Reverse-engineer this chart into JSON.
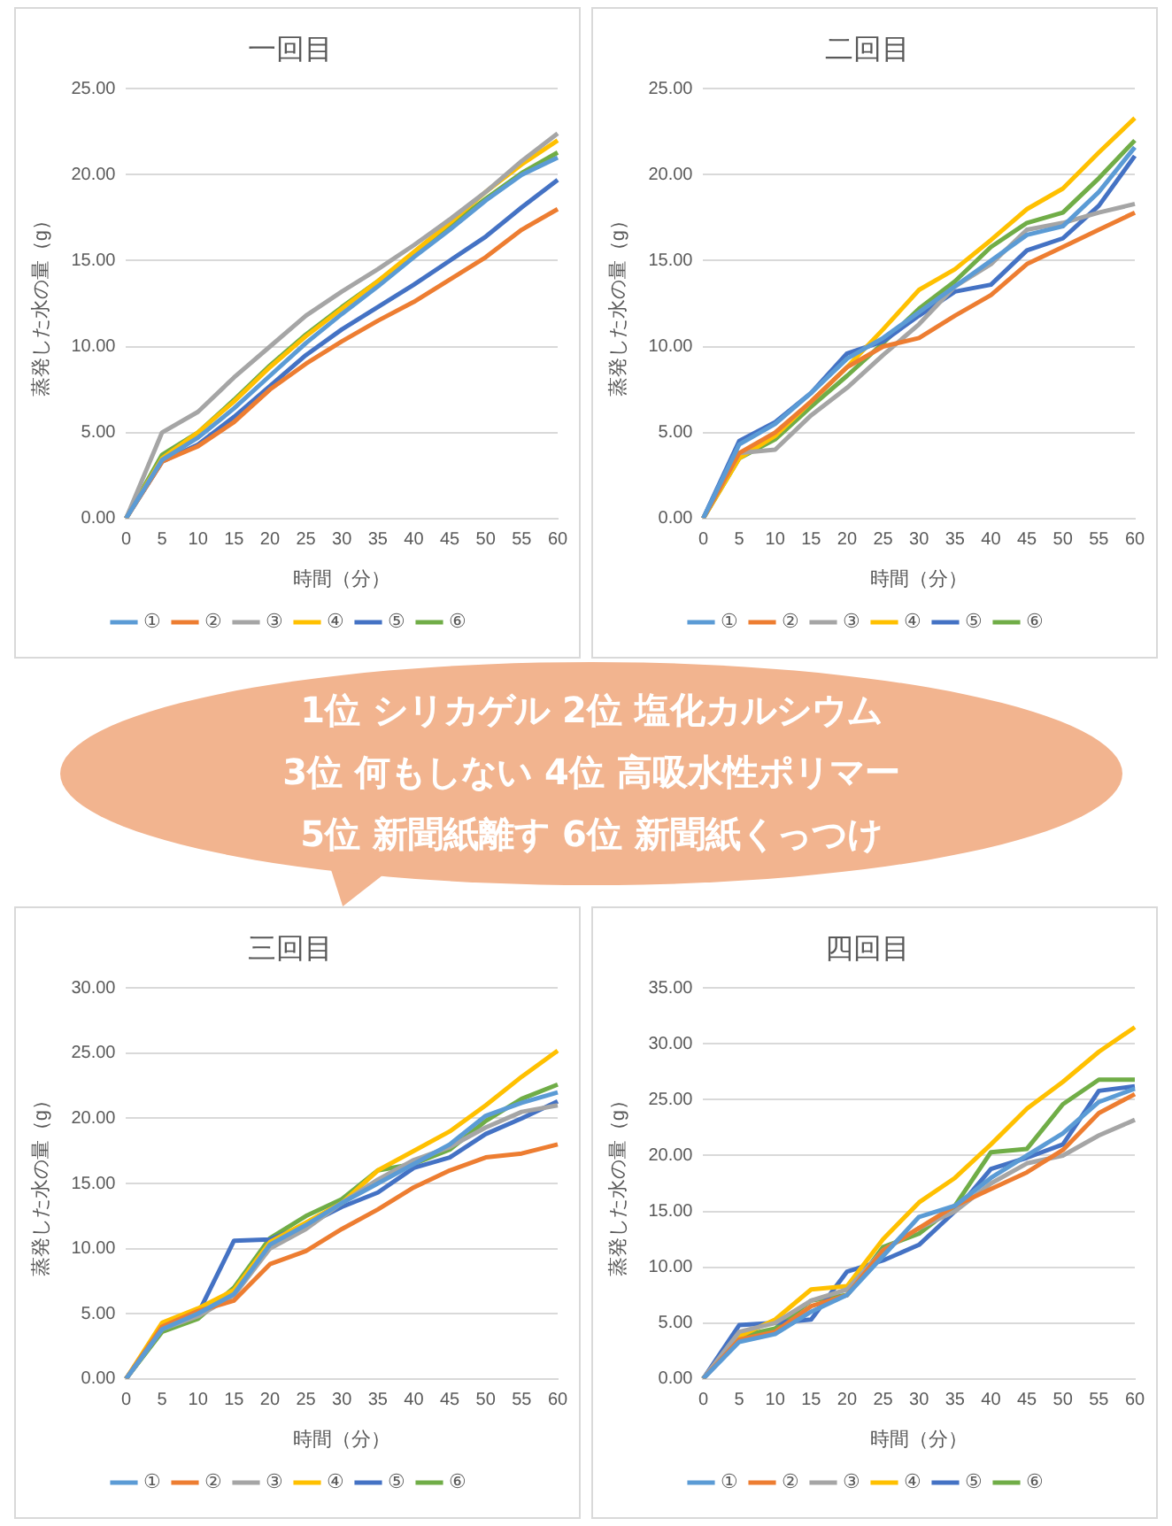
{
  "chart_data": [
    {
      "type": "line",
      "title": "一回目",
      "xlabel": "時間（分）",
      "ylabel": "蒸発した水の量（g）",
      "categories": [
        "0",
        "5",
        "10",
        "15",
        "20",
        "25",
        "30",
        "35",
        "40",
        "45",
        "50",
        "55",
        "60"
      ],
      "series": [
        {
          "name": "①",
          "color": "#5b9bd5",
          "values": [
            0,
            3.4,
            4.7,
            6.4,
            8.3,
            10.2,
            11.9,
            13.5,
            15.2,
            16.8,
            18.5,
            20.0,
            21.0
          ]
        },
        {
          "name": "②",
          "color": "#ed7d31",
          "values": [
            0,
            3.3,
            4.2,
            5.6,
            7.5,
            9.0,
            10.3,
            11.5,
            12.6,
            13.9,
            15.2,
            16.8,
            18.0
          ]
        },
        {
          "name": "③",
          "color": "#a5a5a5",
          "values": [
            0,
            5.0,
            6.2,
            8.2,
            10.0,
            11.8,
            13.2,
            14.5,
            15.9,
            17.4,
            19.0,
            20.8,
            22.4
          ]
        },
        {
          "name": "④",
          "color": "#ffc000",
          "values": [
            0,
            3.5,
            5.0,
            6.8,
            8.8,
            10.6,
            12.2,
            13.8,
            15.5,
            17.2,
            19.0,
            20.6,
            22.0
          ]
        },
        {
          "name": "⑤",
          "color": "#4472c4",
          "values": [
            0,
            3.3,
            4.3,
            5.9,
            7.7,
            9.5,
            11.0,
            12.3,
            13.6,
            15.0,
            16.4,
            18.1,
            19.7
          ]
        },
        {
          "name": "⑥",
          "color": "#70ad47",
          "values": [
            0,
            3.7,
            5.0,
            6.9,
            8.9,
            10.7,
            12.3,
            13.8,
            15.4,
            17.0,
            18.6,
            20.1,
            21.3
          ]
        }
      ],
      "ylim": [
        0,
        25
      ],
      "yticks": [
        {
          "value": 0,
          "label": "0.00"
        },
        {
          "value": 5,
          "label": "5.00"
        },
        {
          "value": 10,
          "label": "10.00"
        },
        {
          "value": 15,
          "label": "15.00"
        },
        {
          "value": 20,
          "label": "20.00"
        },
        {
          "value": 25,
          "label": "25.00"
        }
      ],
      "grid": "y",
      "legend": "bottom"
    },
    {
      "type": "line",
      "title": "二回目",
      "xlabel": "時間（分）",
      "ylabel": "蒸発した水の量（g）",
      "categories": [
        "0",
        "5",
        "10",
        "15",
        "20",
        "25",
        "30",
        "35",
        "40",
        "45",
        "50",
        "55",
        "60"
      ],
      "series": [
        {
          "name": "①",
          "color": "#5b9bd5",
          "values": [
            0,
            4.3,
            5.5,
            7.3,
            9.3,
            10.5,
            12.0,
            13.5,
            15.0,
            16.5,
            17.0,
            19.0,
            21.6
          ]
        },
        {
          "name": "②",
          "color": "#ed7d31",
          "values": [
            0,
            3.8,
            5.0,
            6.8,
            8.8,
            10.0,
            10.5,
            11.8,
            13.0,
            14.8,
            15.8,
            16.8,
            17.8
          ]
        },
        {
          "name": "③",
          "color": "#a5a5a5",
          "values": [
            0,
            3.8,
            4.0,
            6.0,
            7.6,
            9.5,
            11.3,
            13.5,
            14.8,
            16.8,
            17.2,
            17.8,
            18.3
          ]
        },
        {
          "name": "④",
          "color": "#ffc000",
          "values": [
            0,
            3.5,
            4.8,
            6.8,
            8.8,
            11.0,
            13.3,
            14.5,
            16.2,
            18.0,
            19.2,
            21.3,
            23.3
          ]
        },
        {
          "name": "⑤",
          "color": "#4472c4",
          "values": [
            0,
            4.5,
            5.6,
            7.3,
            9.6,
            10.3,
            11.8,
            13.2,
            13.6,
            15.6,
            16.3,
            18.2,
            21.1
          ]
        },
        {
          "name": "⑥",
          "color": "#70ad47",
          "values": [
            0,
            3.5,
            4.6,
            6.5,
            8.3,
            10.2,
            12.2,
            13.8,
            15.8,
            17.2,
            17.8,
            19.8,
            22.0
          ]
        }
      ],
      "ylim": [
        0,
        25
      ],
      "yticks": [
        {
          "value": 0,
          "label": "0.00"
        },
        {
          "value": 5,
          "label": "5.00"
        },
        {
          "value": 10,
          "label": "10.00"
        },
        {
          "value": 15,
          "label": "15.00"
        },
        {
          "value": 20,
          "label": "20.00"
        },
        {
          "value": 25,
          "label": "25.00"
        }
      ],
      "grid": "y",
      "legend": "bottom"
    },
    {
      "type": "line",
      "title": "三回目",
      "xlabel": "時間（分）",
      "ylabel": "蒸発した水の量（g）",
      "categories": [
        "0",
        "5",
        "10",
        "15",
        "20",
        "25",
        "30",
        "35",
        "40",
        "45",
        "50",
        "55",
        "60"
      ],
      "series": [
        {
          "name": "①",
          "color": "#5b9bd5",
          "values": [
            0,
            3.8,
            5.0,
            6.5,
            10.3,
            11.8,
            13.5,
            15.0,
            16.5,
            18.0,
            20.2,
            21.2,
            22.0
          ]
        },
        {
          "name": "②",
          "color": "#ed7d31",
          "values": [
            0,
            4.0,
            5.2,
            6.0,
            8.8,
            9.8,
            11.5,
            13.0,
            14.7,
            16.0,
            17.0,
            17.3,
            18.0
          ]
        },
        {
          "name": "③",
          "color": "#a5a5a5",
          "values": [
            0,
            3.8,
            4.8,
            6.4,
            10.0,
            11.5,
            13.5,
            15.3,
            16.8,
            17.8,
            19.3,
            20.5,
            21.0
          ]
        },
        {
          "name": "④",
          "color": "#ffc000",
          "values": [
            0,
            4.3,
            5.4,
            6.8,
            10.5,
            12.0,
            13.5,
            16.0,
            17.5,
            19.0,
            21.0,
            23.2,
            25.2
          ]
        },
        {
          "name": "⑤",
          "color": "#4472c4",
          "values": [
            0,
            3.8,
            5.0,
            10.6,
            10.7,
            11.8,
            13.2,
            14.3,
            16.2,
            17.0,
            18.8,
            20.0,
            21.3
          ]
        },
        {
          "name": "⑥",
          "color": "#70ad47",
          "values": [
            0,
            3.6,
            4.6,
            7.0,
            10.8,
            12.5,
            13.8,
            16.0,
            16.5,
            17.6,
            19.8,
            21.5,
            22.6
          ]
        }
      ],
      "ylim": [
        0,
        30
      ],
      "yticks": [
        {
          "value": 0,
          "label": "0.00"
        },
        {
          "value": 5,
          "label": "5.00"
        },
        {
          "value": 10,
          "label": "10.00"
        },
        {
          "value": 15,
          "label": "15.00"
        },
        {
          "value": 20,
          "label": "20.00"
        },
        {
          "value": 25,
          "label": "25.00"
        },
        {
          "value": 30,
          "label": "30.00"
        }
      ],
      "grid": "y",
      "legend": "bottom"
    },
    {
      "type": "line",
      "title": "四回目",
      "xlabel": "時間（分）",
      "ylabel": "蒸発した水の量（g）",
      "categories": [
        "0",
        "5",
        "10",
        "15",
        "20",
        "25",
        "30",
        "35",
        "40",
        "45",
        "50",
        "55",
        "60"
      ],
      "series": [
        {
          "name": "①",
          "color": "#5b9bd5",
          "values": [
            0,
            3.3,
            4.0,
            6.0,
            7.5,
            11.0,
            14.5,
            15.5,
            18.0,
            20.0,
            22.0,
            24.8,
            26.0
          ]
        },
        {
          "name": "②",
          "color": "#ed7d31",
          "values": [
            0,
            3.5,
            4.2,
            6.5,
            7.5,
            11.5,
            13.5,
            15.5,
            17.0,
            18.5,
            20.5,
            23.8,
            25.5
          ]
        },
        {
          "name": "③",
          "color": "#a5a5a5",
          "values": [
            0,
            4.2,
            5.0,
            7.0,
            8.0,
            11.5,
            13.5,
            15.0,
            17.5,
            19.3,
            20.0,
            21.8,
            23.2
          ]
        },
        {
          "name": "④",
          "color": "#ffc000",
          "values": [
            0,
            3.8,
            5.3,
            8.0,
            8.3,
            12.5,
            15.8,
            18.0,
            21.0,
            24.2,
            26.6,
            29.3,
            31.5
          ]
        },
        {
          "name": "⑤",
          "color": "#4472c4",
          "values": [
            0,
            4.8,
            5.0,
            5.3,
            9.6,
            10.6,
            12.0,
            15.0,
            18.8,
            19.8,
            21.0,
            25.8,
            26.2
          ]
        },
        {
          "name": "⑥",
          "color": "#70ad47",
          "values": [
            0,
            3.8,
            4.5,
            7.0,
            7.5,
            11.8,
            13.0,
            15.5,
            20.3,
            20.6,
            24.6,
            26.8,
            26.8
          ]
        }
      ],
      "ylim": [
        0,
        35
      ],
      "yticks": [
        {
          "value": 0,
          "label": "0.00"
        },
        {
          "value": 5,
          "label": "5.00"
        },
        {
          "value": 10,
          "label": "10.00"
        },
        {
          "value": 15,
          "label": "15.00"
        },
        {
          "value": 20,
          "label": "20.00"
        },
        {
          "value": 25,
          "label": "25.00"
        },
        {
          "value": 30,
          "label": "30.00"
        },
        {
          "value": 35,
          "label": "35.00"
        }
      ],
      "grid": "y",
      "legend": "bottom"
    },
    {
      "type": "other",
      "annotations": [
        "1位  シリカゲル  2位  塩化カルシウム",
        "3位  何もしない  4位  高吸水性ポリマー",
        "5位  新聞紙離す  6位  新聞紙くっつけ"
      ]
    }
  ]
}
